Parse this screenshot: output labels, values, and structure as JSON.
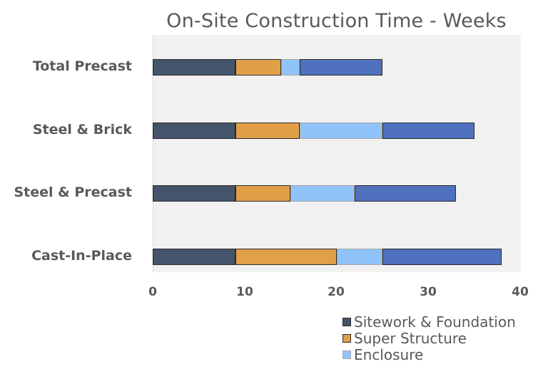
{
  "chart_data": {
    "type": "bar",
    "orientation": "horizontal",
    "stacked": true,
    "title": "On-Site Construction Time - Weeks",
    "xlabel": "",
    "ylabel": "",
    "xlim": [
      0,
      40
    ],
    "xticks": [
      "0",
      "10",
      "20",
      "30",
      "40"
    ],
    "grid": false,
    "legend_position": "bottom-right",
    "categories": [
      "Total Precast",
      "Steel & Brick",
      "Steel & Precast",
      "Cast-In-Place"
    ],
    "series": [
      {
        "name": "Sitework & Foundation",
        "color": "#44546a",
        "values": [
          9,
          9,
          9,
          9
        ]
      },
      {
        "name": "Super Structure",
        "color": "#e19f48",
        "values": [
          5,
          7,
          6,
          11
        ]
      },
      {
        "name": "Enclosure",
        "color": "#8fc3f9",
        "values": [
          2,
          9,
          7,
          5
        ]
      },
      {
        "name": "",
        "color": "#4f71be",
        "values": [
          9,
          10,
          11,
          13
        ]
      }
    ]
  }
}
